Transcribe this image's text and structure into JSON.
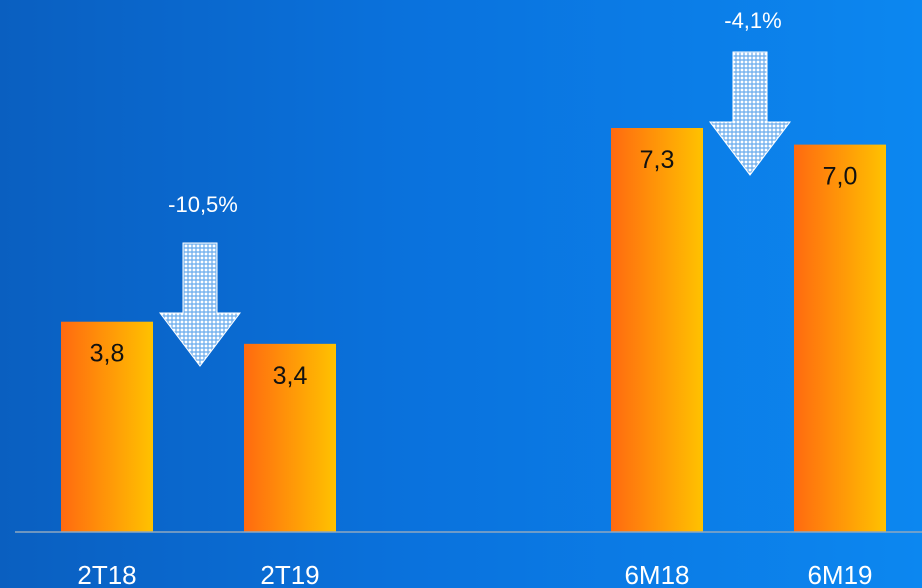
{
  "chart_data": {
    "type": "bar",
    "title": "",
    "xlabel": "",
    "ylabel": "",
    "categories": [
      "2T18",
      "2T19",
      "6M18",
      "6M19"
    ],
    "values": [
      3.8,
      3.4,
      7.3,
      7.0
    ],
    "value_labels": [
      "3,8",
      "3,4",
      "7,3",
      "7,0"
    ],
    "ylim": [
      0,
      7.3
    ],
    "grid": false,
    "legend": "none",
    "bar_gradient": [
      "#ff6a10",
      "#ffc200"
    ],
    "annotations": [
      {
        "text": "-10,5%",
        "between": [
          0,
          1
        ],
        "icon": "down-arrow-icon"
      },
      {
        "text": "-4,1%",
        "between": [
          2,
          3
        ],
        "icon": "down-arrow-icon"
      }
    ]
  },
  "colors": {
    "background_left": "#0a5fc0",
    "background_right": "#0c87f0",
    "baseline": "#8fa8c0",
    "arrow": "#ffffff"
  }
}
